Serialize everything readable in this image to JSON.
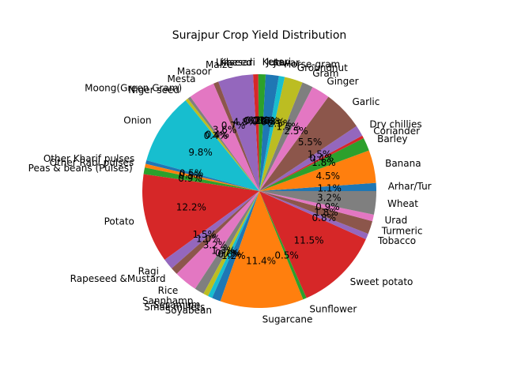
{
  "chart_data": {
    "type": "pie",
    "title": "Surajpur Crop Yield Distribution",
    "start_angle_deg": 0,
    "direction": "counterclockwise",
    "slices": [
      {
        "label": "Arhar/Tur",
        "value": 1.1,
        "pct": "1.1%",
        "color": "#1f77b4"
      },
      {
        "label": "Banana",
        "value": 4.5,
        "pct": "4.5%",
        "color": "#ff7f0e"
      },
      {
        "label": "Barley",
        "value": 1.8,
        "pct": "1.8%",
        "color": "#2ca02c"
      },
      {
        "label": "Coriander",
        "value": 0.4,
        "pct": "0.4%",
        "color": "#d62728"
      },
      {
        "label": "Dry chillies",
        "value": 1.5,
        "pct": "1.5%",
        "color": "#9467bd"
      },
      {
        "label": "Garlic",
        "value": 5.5,
        "pct": "5.5%",
        "color": "#8c564b"
      },
      {
        "label": "Ginger",
        "value": 2.5,
        "pct": "2.5%",
        "color": "#e377c2"
      },
      {
        "label": "Gram",
        "value": 1.5,
        "pct": "1.5%",
        "color": "#7f7f7f"
      },
      {
        "label": "Groundnut",
        "value": 2.5,
        "pct": "2.5%",
        "color": "#bcbd22"
      },
      {
        "label": "Horse-gram",
        "value": 0.8,
        "pct": "0.8%",
        "color": "#17becf"
      },
      {
        "label": "Jowar",
        "value": 1.8,
        "pct": "1.8%",
        "color": "#1f77b4"
      },
      {
        "label": "Jute",
        "value": 0.0,
        "pct": "0.0%",
        "color": "#ff7f0e"
      },
      {
        "label": "Kesari",
        "value": 1.0,
        "pct": "1.0%",
        "color": "#2ca02c"
      },
      {
        "label": "Khesari",
        "value": 0.7,
        "pct": "0.7%",
        "color": "#d62728"
      },
      {
        "label": "Linseed",
        "value": 0.0,
        "pct": "0.0%",
        "color": "#9467bd"
      },
      {
        "label": "Maize",
        "value": 4.8,
        "pct": "4.8%",
        "color": "#9467bd"
      },
      {
        "label": "Masoor",
        "value": 0.7,
        "pct": "0.7%",
        "color": "#8c564b"
      },
      {
        "label": "Mesta",
        "value": 3.6,
        "pct": "3.6%",
        "color": "#e377c2"
      },
      {
        "label": "Moong(Green Gram)",
        "value": 0.4,
        "pct": "0.4%",
        "color": "#7f7f7f"
      },
      {
        "label": "Niger seed",
        "value": 0.4,
        "pct": "0.4%",
        "color": "#bcbd22"
      },
      {
        "label": "Onion",
        "value": 9.8,
        "pct": "9.8%",
        "color": "#17becf"
      },
      {
        "label": "Other Kharif pulses",
        "value": 0.5,
        "pct": "0.5%",
        "color": "#1f77b4"
      },
      {
        "label": "Other Rabi pulses",
        "value": 0.5,
        "pct": "0.5%",
        "color": "#ff7f0e"
      },
      {
        "label": "Peas & beans (Pulses)",
        "value": 0.9,
        "pct": "0.9%",
        "color": "#2ca02c"
      },
      {
        "label": "Potato",
        "value": 12.2,
        "pct": "12.2%",
        "color": "#d62728"
      },
      {
        "label": "Ragi",
        "value": 1.5,
        "pct": "1.5%",
        "color": "#9467bd"
      },
      {
        "label": "Rapeseed &Mustard",
        "value": 1.0,
        "pct": "1.0%",
        "color": "#8c564b"
      },
      {
        "label": "Rice",
        "value": 3.2,
        "pct": "3.2%",
        "color": "#e377c2"
      },
      {
        "label": "Sannhamp",
        "value": 1.3,
        "pct": "1.3%",
        "color": "#7f7f7f"
      },
      {
        "label": "Sesamum",
        "value": 0.7,
        "pct": "0.7%",
        "color": "#bcbd22"
      },
      {
        "label": "Small millets",
        "value": 0.6,
        "pct": "0.6%",
        "color": "#17becf"
      },
      {
        "label": "Soyabean",
        "value": 1.2,
        "pct": "1.2%",
        "color": "#1f77b4"
      },
      {
        "label": "Sugarcane",
        "value": 11.4,
        "pct": "11.4%",
        "color": "#ff7f0e"
      },
      {
        "label": "Sunflower",
        "value": 0.5,
        "pct": "0.5%",
        "color": "#2ca02c"
      },
      {
        "label": "Sweet potato",
        "value": 11.5,
        "pct": "11.5%",
        "color": "#d62728"
      },
      {
        "label": "Tobacco",
        "value": 0.8,
        "pct": "0.8%",
        "color": "#9467bd"
      },
      {
        "label": "Turmeric",
        "value": 1.8,
        "pct": "1.8%",
        "color": "#8c564b"
      },
      {
        "label": "Urad",
        "value": 0.9,
        "pct": "0.9%",
        "color": "#e377c2"
      },
      {
        "label": "Wheat",
        "value": 3.2,
        "pct": "3.2%",
        "color": "#7f7f7f"
      }
    ]
  }
}
